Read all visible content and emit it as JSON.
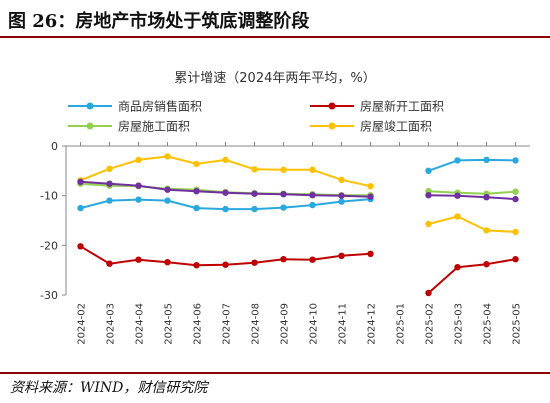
{
  "figure": {
    "title": "图 26：房地产市场处于筑底调整阶段",
    "source": "资料来源：WIND，财信研究院"
  },
  "chart_data": {
    "type": "line",
    "title": "累计增速（2024年两年平均，%）",
    "xlabel": "",
    "ylabel": "",
    "categories": [
      "2024-02",
      "2024-03",
      "2024-04",
      "2024-05",
      "2024-06",
      "2024-07",
      "2024-08",
      "2024-09",
      "2024-10",
      "2024-11",
      "2024-12",
      "2025-01",
      "2025-02",
      "2025-03",
      "2025-04",
      "2025-05"
    ],
    "ylim": [
      -30,
      0
    ],
    "yticks": [
      0,
      -10,
      -20,
      -30
    ],
    "grid": false,
    "legend": "top, two columns",
    "series": [
      {
        "name": "商品房销售面积",
        "color": "#29a8e0",
        "values": [
          -12.5,
          -11.0,
          -10.8,
          -11.0,
          -12.5,
          -12.7,
          -12.7,
          -12.4,
          -11.9,
          -11.2,
          -10.7,
          null,
          -5.0,
          -2.9,
          -2.8,
          -2.9
        ]
      },
      {
        "name": "房屋新开工面积",
        "color": "#c00000",
        "values": [
          -20.2,
          -23.7,
          -22.9,
          -23.4,
          -24.0,
          -23.9,
          -23.5,
          -22.8,
          -22.9,
          -22.1,
          -21.7,
          null,
          -29.6,
          -24.4,
          -23.8,
          -22.8
        ]
      },
      {
        "name": "房屋施工面积",
        "color": "#92d050",
        "values": [
          -7.6,
          -8.0,
          -8.1,
          -8.6,
          -8.8,
          -9.3,
          -9.5,
          -9.6,
          -9.7,
          -9.9,
          -9.9,
          null,
          -9.1,
          -9.4,
          -9.6,
          -9.2
        ]
      },
      {
        "name": "房屋竣工面积",
        "color": "#ffc000",
        "values": [
          -6.9,
          -4.6,
          -2.8,
          -2.1,
          -3.6,
          -2.8,
          -4.7,
          -4.8,
          -4.8,
          -6.8,
          -8.1,
          null,
          -15.7,
          -14.2,
          -17.0,
          -17.3
        ]
      },
      {
        "name": "",
        "color": "#7030a0",
        "values": [
          -7.2,
          -7.6,
          -8.0,
          -8.8,
          -9.1,
          -9.4,
          -9.6,
          -9.7,
          -9.9,
          -10.0,
          -10.2,
          null,
          -9.9,
          -10.0,
          -10.3,
          -10.7
        ]
      }
    ]
  }
}
